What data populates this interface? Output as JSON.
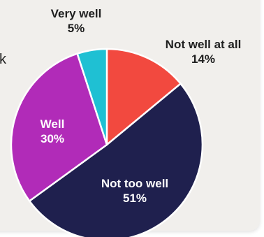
{
  "chart_data": {
    "type": "pie",
    "slices": [
      {
        "label": "Not well at all",
        "value": 14,
        "value_label": "14%",
        "color": "#f2493f"
      },
      {
        "label": "Not too well",
        "value": 51,
        "value_label": "51%",
        "color": "#1f204e"
      },
      {
        "label": "Well",
        "value": 30,
        "value_label": "30%",
        "color": "#b12bb8"
      },
      {
        "label": "Very well",
        "value": 5,
        "value_label": "5%",
        "color": "#1fc0d3"
      }
    ]
  },
  "background_color": "#f1efec",
  "cropped_text": "k"
}
